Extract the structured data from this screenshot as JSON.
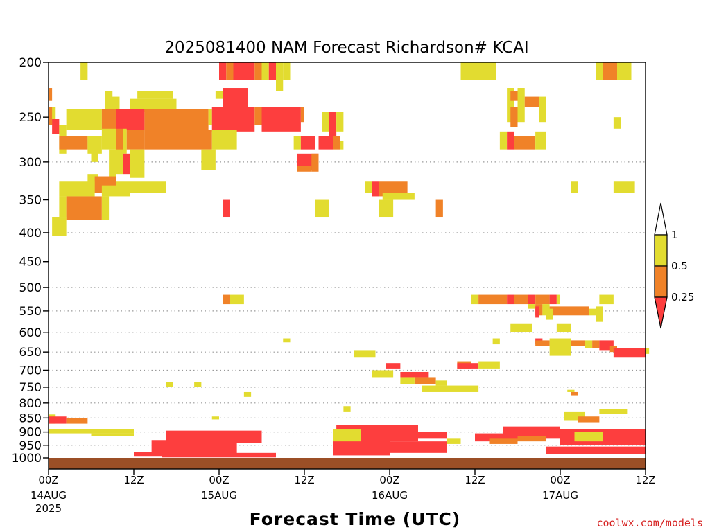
{
  "chart_data": {
    "type": "heatmap",
    "title": "2025081400 NAM Forecast Richardson# KCAI",
    "xlabel": "Forecast Time (UTC)",
    "credit": "coolwx.com/models",
    "x_ticks": [
      {
        "t": 0,
        "label": "00Z",
        "sub": [
          "14AUG",
          "2025"
        ]
      },
      {
        "t": 12,
        "label": "12Z",
        "sub": []
      },
      {
        "t": 24,
        "label": "00Z",
        "sub": [
          "15AUG"
        ]
      },
      {
        "t": 36,
        "label": "12Z",
        "sub": []
      },
      {
        "t": 48,
        "label": "00Z",
        "sub": [
          "16AUG"
        ]
      },
      {
        "t": 60,
        "label": "12Z",
        "sub": []
      },
      {
        "t": 72,
        "label": "00Z",
        "sub": [
          "17AUG"
        ]
      },
      {
        "t": 84,
        "label": "12Z",
        "sub": []
      }
    ],
    "xlim": [
      0,
      84
    ],
    "y_ticks": [
      200,
      250,
      300,
      350,
      400,
      450,
      500,
      550,
      600,
      650,
      700,
      750,
      800,
      850,
      900,
      950,
      1000
    ],
    "y_grid": [
      300,
      400,
      500,
      550,
      600,
      650,
      700,
      750,
      800,
      850,
      900,
      950
    ],
    "ylim": [
      200,
      1025
    ],
    "y_axis": "pressure (log scale)",
    "legend": {
      "levels": [
        "1",
        "0.5",
        "0.25"
      ],
      "colors": {
        "yellow": "#e2dc30",
        "orange": "#f08228",
        "red": "#fd3e3e"
      }
    },
    "colors": {
      "Y": "#e2dc30",
      "O": "#f08228",
      "R": "#fd3e3e",
      "ground": "#9b4f26"
    },
    "ground_level": 1000,
    "cells": [
      [
        "Y",
        4.5,
        5.5,
        200,
        215
      ],
      [
        "R",
        24,
        25,
        200,
        215
      ],
      [
        "O",
        25,
        26,
        200,
        215
      ],
      [
        "R",
        26,
        29,
        200,
        215
      ],
      [
        "O",
        29,
        30,
        200,
        215
      ],
      [
        "Y",
        30,
        31,
        200,
        215
      ],
      [
        "R",
        31,
        32,
        200,
        215
      ],
      [
        "Y",
        32,
        33,
        200,
        225
      ],
      [
        "Y",
        33,
        34,
        200,
        215
      ],
      [
        "Y",
        58,
        63,
        200,
        215
      ],
      [
        "Y",
        77,
        78,
        200,
        215
      ],
      [
        "O",
        78,
        80,
        200,
        215
      ],
      [
        "Y",
        80,
        82,
        200,
        215
      ],
      [
        "O",
        0,
        0.5,
        222,
        234
      ],
      [
        "Y",
        8,
        9,
        225,
        232
      ],
      [
        "Y",
        12.5,
        17.5,
        225,
        232
      ],
      [
        "Y",
        23.5,
        24.5,
        225,
        232
      ],
      [
        "R",
        24.5,
        28,
        222,
        250
      ],
      [
        "Y",
        64.5,
        65.5,
        222,
        255
      ],
      [
        "O",
        65,
        66,
        225,
        234
      ],
      [
        "Y",
        66,
        67,
        222,
        255
      ],
      [
        "O",
        67,
        69,
        230,
        240
      ],
      [
        "Y",
        69,
        70,
        230,
        255
      ],
      [
        "Y",
        8,
        10,
        230,
        245
      ],
      [
        "Y",
        11.5,
        18,
        232,
        245
      ],
      [
        "Y",
        0,
        1,
        240,
        258
      ],
      [
        "O",
        0,
        0.5,
        240,
        258
      ],
      [
        "Y",
        2.5,
        7.5,
        242,
        263
      ],
      [
        "O",
        7.5,
        9.5,
        242,
        263
      ],
      [
        "R",
        9.5,
        13.5,
        242,
        263
      ],
      [
        "O",
        13.5,
        22.5,
        242,
        263
      ],
      [
        "Y",
        22.5,
        23,
        242,
        258
      ],
      [
        "R",
        23,
        29,
        240,
        265
      ],
      [
        "O",
        29,
        30,
        240,
        258
      ],
      [
        "R",
        30,
        35.5,
        240,
        265
      ],
      [
        "O",
        35.5,
        36,
        240,
        255
      ],
      [
        "Y",
        38.5,
        39.5,
        245,
        265
      ],
      [
        "R",
        39.5,
        40.5,
        245,
        270
      ],
      [
        "Y",
        40.5,
        41.5,
        245,
        265
      ],
      [
        "O",
        65,
        66,
        240,
        260
      ],
      [
        "Y",
        79.5,
        80.5,
        250,
        262
      ],
      [
        "R",
        0.5,
        1.5,
        252,
        268
      ],
      [
        "Y",
        1.5,
        2.5,
        258,
        268
      ],
      [
        "Y",
        7.5,
        9.5,
        262,
        285
      ],
      [
        "O",
        9.5,
        10.5,
        262,
        290
      ],
      [
        "Y",
        10.5,
        11,
        262,
        290
      ],
      [
        "O",
        11,
        13.5,
        263,
        285
      ],
      [
        "O",
        13.5,
        23,
        263,
        285
      ],
      [
        "Y",
        23,
        26.5,
        263,
        285
      ],
      [
        "Y",
        1.5,
        2.5,
        268,
        290
      ],
      [
        "O",
        1.5,
        5.5,
        270,
        285
      ],
      [
        "Y",
        5.5,
        7.5,
        270,
        290
      ],
      [
        "Y",
        34.5,
        35.5,
        270,
        285
      ],
      [
        "R",
        35.5,
        37.5,
        270,
        285
      ],
      [
        "R",
        38,
        40,
        270,
        285
      ],
      [
        "O",
        40,
        41,
        270,
        285
      ],
      [
        "Y",
        41,
        41.5,
        275,
        285
      ],
      [
        "Y",
        63.5,
        64.5,
        265,
        285
      ],
      [
        "R",
        64.5,
        65.5,
        265,
        285
      ],
      [
        "O",
        65.5,
        68.5,
        270,
        285
      ],
      [
        "Y",
        68.5,
        70,
        265,
        285
      ],
      [
        "Y",
        6,
        7,
        285,
        300
      ],
      [
        "Y",
        8.5,
        9.5,
        285,
        320
      ],
      [
        "Y",
        9.5,
        10.5,
        285,
        315
      ],
      [
        "R",
        10.5,
        11.5,
        290,
        315
      ],
      [
        "Y",
        11.5,
        13.5,
        285,
        320
      ],
      [
        "Y",
        21.5,
        23.5,
        285,
        310
      ],
      [
        "R",
        35,
        38,
        290,
        310
      ],
      [
        "O",
        37,
        38,
        290,
        312
      ],
      [
        "O",
        35,
        37,
        305,
        312
      ],
      [
        "Y",
        5.5,
        7,
        315,
        340
      ],
      [
        "O",
        6.5,
        9.5,
        318,
        340
      ],
      [
        "Y",
        1.5,
        6.5,
        325,
        345
      ],
      [
        "Y",
        9.5,
        16.5,
        325,
        340
      ],
      [
        "Y",
        7.5,
        11.5,
        330,
        345
      ],
      [
        "Y",
        44.5,
        45.5,
        325,
        340
      ],
      [
        "R",
        45.5,
        46.5,
        325,
        345
      ],
      [
        "O",
        46.5,
        50.5,
        325,
        345
      ],
      [
        "Y",
        47,
        51.5,
        340,
        350
      ],
      [
        "Y",
        73.5,
        74.5,
        325,
        340
      ],
      [
        "Y",
        79.5,
        82.5,
        325,
        340
      ],
      [
        "Y",
        1.5,
        2.5,
        345,
        375
      ],
      [
        "O",
        2.5,
        7.5,
        345,
        380
      ],
      [
        "Y",
        7.5,
        8.5,
        345,
        380
      ],
      [
        "R",
        24.5,
        25.5,
        350,
        375
      ],
      [
        "Y",
        37.5,
        39.5,
        350,
        375
      ],
      [
        "Y",
        46.5,
        48.5,
        350,
        375
      ],
      [
        "O",
        54.5,
        55.5,
        350,
        375
      ],
      [
        "Y",
        0.5,
        2.5,
        375,
        405
      ],
      [
        "O",
        24.5,
        25.5,
        515,
        535
      ],
      [
        "Y",
        25.5,
        27.5,
        515,
        535
      ],
      [
        "Y",
        59.5,
        60.5,
        515,
        535
      ],
      [
        "O",
        60.5,
        64.5,
        515,
        535
      ],
      [
        "R",
        64.5,
        65.5,
        515,
        535
      ],
      [
        "O",
        65.5,
        67.5,
        515,
        535
      ],
      [
        "R",
        67.5,
        68.5,
        515,
        535
      ],
      [
        "O",
        68.5,
        70.5,
        515,
        535
      ],
      [
        "R",
        70.5,
        71.5,
        515,
        535
      ],
      [
        "Y",
        71.5,
        72,
        515,
        535
      ],
      [
        "Y",
        77.5,
        79.5,
        515,
        535
      ],
      [
        "Y",
        67.5,
        68.5,
        535,
        545
      ],
      [
        "O",
        68.5,
        69.5,
        535,
        560
      ],
      [
        "Y",
        69.5,
        70.5,
        535,
        560
      ],
      [
        "O",
        70.5,
        76,
        540,
        560
      ],
      [
        "Y",
        76,
        77,
        545,
        560
      ],
      [
        "Y",
        77,
        78,
        540,
        575
      ],
      [
        "Y",
        70,
        71,
        545,
        570
      ],
      [
        "R",
        68.5,
        69,
        540,
        565
      ],
      [
        "Y",
        65,
        68,
        580,
        600
      ],
      [
        "Y",
        71.5,
        73.5,
        580,
        600
      ],
      [
        "Y",
        33,
        34,
        615,
        625
      ],
      [
        "Y",
        62.5,
        63.5,
        615,
        630
      ],
      [
        "R",
        68.5,
        69.5,
        615,
        630
      ],
      [
        "O",
        68.5,
        70.5,
        620,
        635
      ],
      [
        "Y",
        70.5,
        73.5,
        615,
        660
      ],
      [
        "O",
        73.5,
        75.5,
        620,
        635
      ],
      [
        "Y",
        75.5,
        76.5,
        620,
        640
      ],
      [
        "O",
        76.5,
        77.5,
        620,
        640
      ],
      [
        "R",
        77.5,
        79.5,
        620,
        645
      ],
      [
        "O",
        79,
        80,
        635,
        650
      ],
      [
        "R",
        79.5,
        84,
        640,
        665
      ],
      [
        "Y",
        84,
        84.5,
        640,
        655
      ],
      [
        "Y",
        43,
        46,
        645,
        665
      ],
      [
        "O",
        57.5,
        59.5,
        675,
        695
      ],
      [
        "R",
        57.5,
        60.5,
        680,
        695
      ],
      [
        "Y",
        60.5,
        63.5,
        675,
        695
      ],
      [
        "R",
        47.5,
        49.5,
        680,
        695
      ],
      [
        "Y",
        45.5,
        48.5,
        700,
        720
      ],
      [
        "R",
        49.5,
        53.5,
        705,
        720
      ],
      [
        "O",
        51.5,
        54.5,
        720,
        740
      ],
      [
        "Y",
        49.5,
        51.5,
        720,
        740
      ],
      [
        "Y",
        54.5,
        56,
        730,
        745
      ],
      [
        "Y",
        52.5,
        60.5,
        745,
        765
      ],
      [
        "Y",
        16.5,
        17.5,
        735,
        750
      ],
      [
        "Y",
        20.5,
        21.5,
        735,
        750
      ],
      [
        "Y",
        27.5,
        28.5,
        765,
        780
      ],
      [
        "O",
        73.5,
        74.5,
        765,
        775
      ],
      [
        "Y",
        73,
        74,
        758,
        765
      ],
      [
        "Y",
        41.5,
        42.5,
        810,
        830
      ],
      [
        "Y",
        72.5,
        75.5,
        830,
        860
      ],
      [
        "O",
        74.5,
        77.5,
        845,
        865
      ],
      [
        "Y",
        77.5,
        81.5,
        820,
        835
      ],
      [
        "Y",
        0,
        1,
        838,
        870
      ],
      [
        "R",
        0,
        2.5,
        845,
        870
      ],
      [
        "O",
        2.5,
        5.5,
        850,
        870
      ],
      [
        "Y",
        23,
        24,
        845,
        855
      ],
      [
        "Y",
        0,
        12,
        890,
        905
      ],
      [
        "Y",
        6,
        12,
        905,
        915
      ],
      [
        "R",
        16.5,
        30,
        895,
        940
      ],
      [
        "R",
        14.5,
        26.5,
        930,
        985
      ],
      [
        "R",
        40.5,
        52,
        875,
        935
      ],
      [
        "R",
        40,
        48,
        930,
        990
      ],
      [
        "Y",
        40,
        44,
        890,
        935
      ],
      [
        "R",
        52,
        56,
        900,
        925
      ],
      [
        "R",
        48,
        56,
        935,
        980
      ],
      [
        "Y",
        56,
        58,
        925,
        945
      ],
      [
        "R",
        60,
        66,
        905,
        935
      ],
      [
        "R",
        64,
        72,
        880,
        925
      ],
      [
        "R",
        72,
        84,
        890,
        950
      ],
      [
        "R",
        70,
        84,
        955,
        985
      ],
      [
        "Y",
        74,
        78,
        900,
        935
      ],
      [
        "O",
        66,
        70,
        915,
        935
      ],
      [
        "O",
        62,
        66,
        925,
        945
      ],
      [
        "R",
        12,
        16,
        975,
        995
      ],
      [
        "R",
        16,
        32,
        980,
        998
      ]
    ]
  }
}
